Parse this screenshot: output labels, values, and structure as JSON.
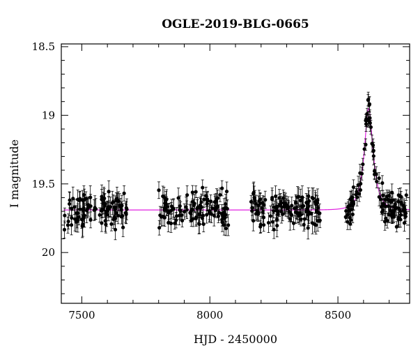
{
  "chart_data": {
    "type": "scatter",
    "title": "OGLE-2019-BLG-0665",
    "xlabel": "HJD - 2450000",
    "ylabel": "I magnitude",
    "xlim": [
      7420,
      8780
    ],
    "ylim": [
      20.37,
      18.48
    ],
    "y_inverted": true,
    "x_ticks": [
      7500,
      8000,
      8500
    ],
    "x_tick_labels": [
      "7500",
      "8000",
      "8500"
    ],
    "y_ticks": [
      18.5,
      19,
      19.5,
      20
    ],
    "y_tick_labels": [
      "18.5",
      "19",
      "19.5",
      "20"
    ],
    "grid": false,
    "legend": "none",
    "marker_color": "#000000",
    "model_color": "#e020e0",
    "model": {
      "baseline_mag": 19.69,
      "peak_time": 8620,
      "peak_mag": 18.95,
      "einstein_time": 34,
      "impact_parameter": 0.4
    },
    "series": [
      {
        "seasons": [
          {
            "start": 7430,
            "end": 7680,
            "n_points": 95,
            "error_typical": 0.07
          },
          {
            "start": 7800,
            "end": 8080,
            "n_points": 110,
            "error_typical": 0.06
          },
          {
            "start": 8160,
            "end": 8430,
            "n_points": 115,
            "error_typical": 0.065
          },
          {
            "start": 8530,
            "end": 8770,
            "n_points": 120,
            "error_typical": 0.05
          }
        ]
      }
    ]
  }
}
